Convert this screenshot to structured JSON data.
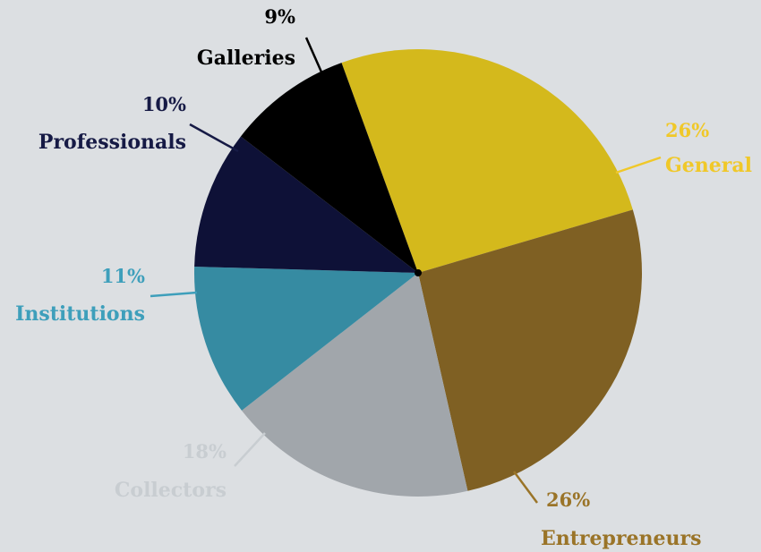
{
  "chart_data": {
    "type": "pie",
    "title": "",
    "slices": [
      {
        "label": "General",
        "value": 26,
        "percent_label": "26%",
        "color": "#d4b91c"
      },
      {
        "label": "Entrepreneurs",
        "value": 26,
        "percent_label": "26%",
        "color": "#7f6023"
      },
      {
        "label": "Collectors",
        "value": 18,
        "percent_label": "18%",
        "color": "#a1a6ab"
      },
      {
        "label": "Institutions",
        "value": 11,
        "percent_label": "11%",
        "color": "#368ba2"
      },
      {
        "label": "Professionals",
        "value": 10,
        "percent_label": "10%",
        "color": "#0e1137"
      },
      {
        "label": "Galleries",
        "value": 9,
        "percent_label": "9%",
        "color": "#000000"
      }
    ],
    "label_colors": {
      "General": "#f0c829",
      "Entrepreneurs": "#9a7428",
      "Collectors": "#c8cdd1",
      "Institutions": "#3e9fbb",
      "Professionals": "#161a45",
      "Galleries": "#000000"
    },
    "legend": "none"
  }
}
